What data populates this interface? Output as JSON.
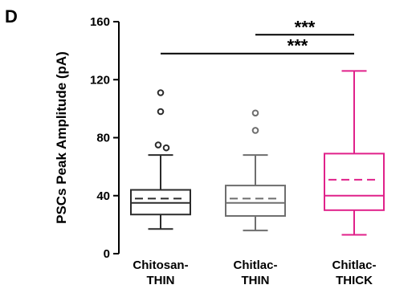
{
  "panel_label": "D",
  "chart_data": {
    "type": "box",
    "ylabel": "PSCs Peak Amplitude (pA)",
    "xlabel": "",
    "ylim": [
      0,
      160
    ],
    "yticks": [
      0,
      40,
      80,
      120,
      160
    ],
    "grid": false,
    "legend": "none",
    "categories": [
      {
        "line1": "Chitosan-",
        "line2": "THIN"
      },
      {
        "line1": "Chitlac-",
        "line2": "THIN"
      },
      {
        "line1": "Chitlac-",
        "line2": "THICK"
      }
    ],
    "boxes": [
      {
        "whisker_low": 17,
        "q1": 27,
        "median": 35,
        "mean": 38,
        "q3": 44,
        "whisker_high": 68,
        "outliers": [
          73,
          75,
          98,
          111
        ],
        "color": "#2b2b2b"
      },
      {
        "whisker_low": 16,
        "q1": 26,
        "median": 35,
        "mean": 38,
        "q3": 47,
        "whisker_high": 68,
        "outliers": [
          85,
          97
        ],
        "color": "#6e6e6e"
      },
      {
        "whisker_low": 13,
        "q1": 30,
        "median": 40,
        "mean": 51,
        "q3": 69,
        "whisker_high": 126,
        "outliers": [],
        "color": "#e0218a"
      }
    ],
    "significance": [
      {
        "from": 0,
        "to": 2,
        "label": "***",
        "y": 138
      },
      {
        "from": 1,
        "to": 2,
        "label": "***",
        "y": 151
      }
    ]
  }
}
